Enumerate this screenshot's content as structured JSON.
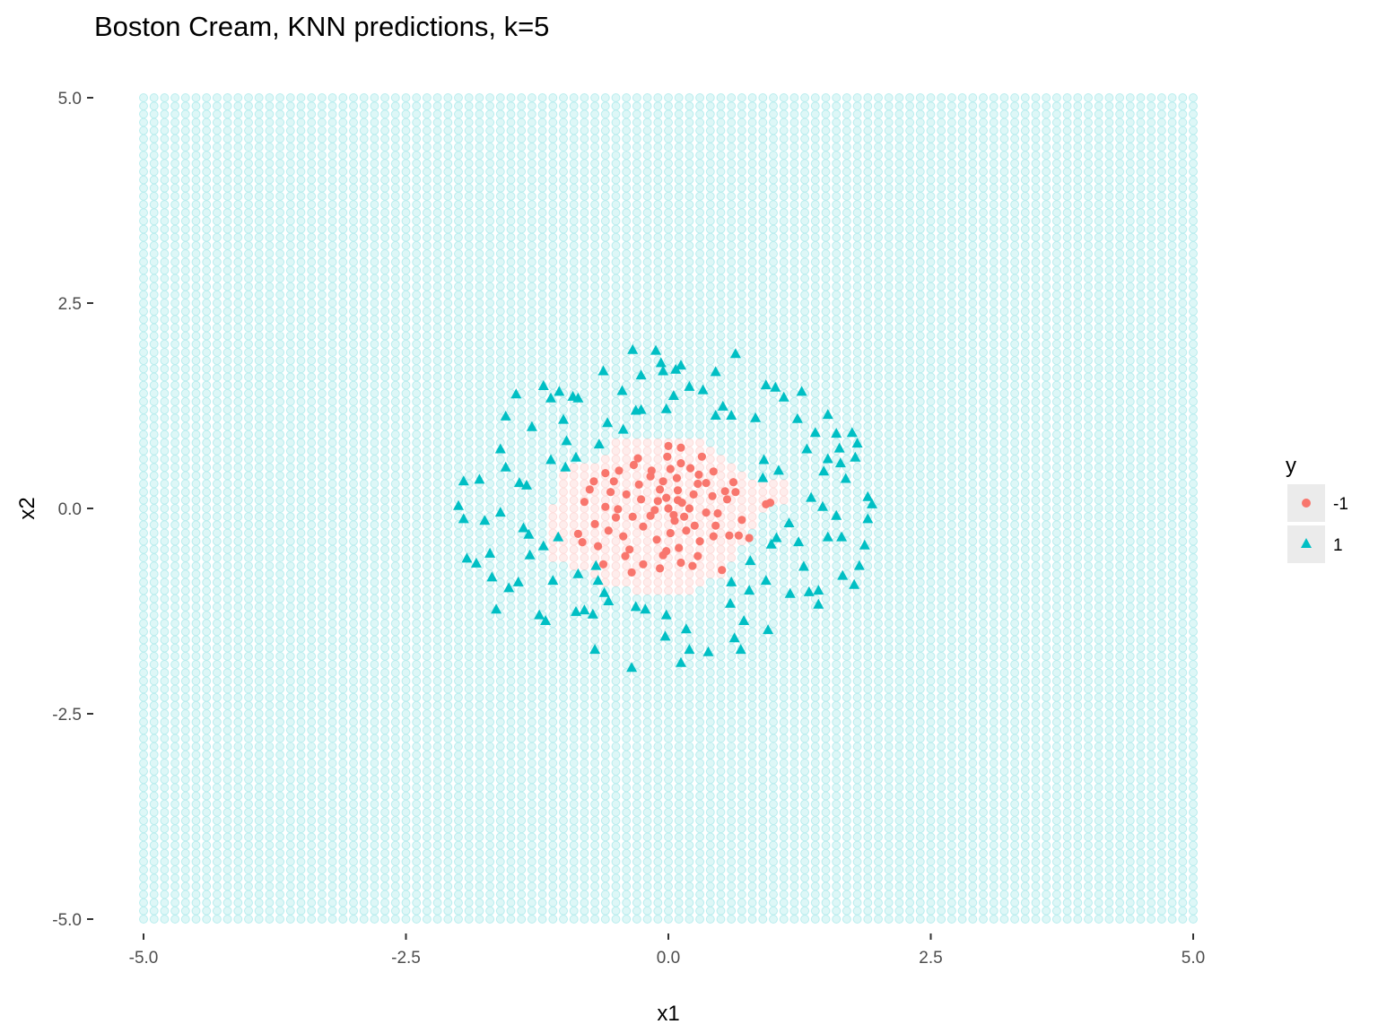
{
  "chart_data": {
    "type": "scatter",
    "title": "Boston Cream, KNN predictions, k=5",
    "xlabel": "x1",
    "ylabel": "x2",
    "xlim": [
      -5,
      5
    ],
    "ylim": [
      -5,
      5
    ],
    "x_ticks": [
      -5.0,
      -2.5,
      0.0,
      2.5,
      5.0
    ],
    "y_ticks": [
      -5.0,
      -2.5,
      0.0,
      2.5,
      5.0
    ],
    "x_tick_labels": [
      "-5.0",
      "-2.5",
      "0.0",
      "2.5",
      "5.0"
    ],
    "y_tick_labels": [
      "-5.0",
      "-2.5",
      "0.0",
      "2.5",
      "5.0"
    ],
    "grid": false,
    "legend": {
      "title": "y",
      "position": "right",
      "entries": [
        {
          "label": "-1",
          "shape": "circle",
          "color": "#F8766D"
        },
        {
          "label": "1",
          "shape": "triangle",
          "color": "#00BFC4"
        }
      ]
    },
    "prediction_grid": {
      "x_range": [
        -5,
        5
      ],
      "y_range": [
        -5,
        5
      ],
      "step": 0.1,
      "color_class_1": "#00BFC4",
      "color_class_neg1": "#F8766D",
      "alpha": 0.15,
      "neg1_region_rows": [
        {
          "y": 0.8,
          "x_from": -0.5,
          "x_to": 0.3
        },
        {
          "y": 0.7,
          "x_from": -0.5,
          "x_to": 0.4
        },
        {
          "y": 0.6,
          "x_from": -0.6,
          "x_to": 0.5
        },
        {
          "y": 0.5,
          "x_from": -0.9,
          "x_to": 0.6
        },
        {
          "y": 0.4,
          "x_from": -1.0,
          "x_to": 0.7
        },
        {
          "y": 0.3,
          "x_from": -1.0,
          "x_to": 1.1
        },
        {
          "y": 0.2,
          "x_from": -1.0,
          "x_to": 1.1
        },
        {
          "y": 0.1,
          "x_from": -1.0,
          "x_to": 1.1
        },
        {
          "y": 0.0,
          "x_from": -1.1,
          "x_to": 0.9
        },
        {
          "y": -0.1,
          "x_from": -1.1,
          "x_to": 0.8
        },
        {
          "y": -0.2,
          "x_from": -1.1,
          "x_to": 0.8
        },
        {
          "y": -0.3,
          "x_from": -1.1,
          "x_to": 0.7
        },
        {
          "y": -0.4,
          "x_from": -1.1,
          "x_to": 0.7
        },
        {
          "y": -0.5,
          "x_from": -1.1,
          "x_to": 0.6
        },
        {
          "y": -0.6,
          "x_from": -1.1,
          "x_to": 0.6
        },
        {
          "y": -0.7,
          "x_from": -0.9,
          "x_to": 0.5
        },
        {
          "y": -0.8,
          "x_from": -0.7,
          "x_to": 0.5
        },
        {
          "y": -0.9,
          "x_from": -0.6,
          "x_to": 0.3
        },
        {
          "y": -1.0,
          "x_from": -0.3,
          "x_to": 0.2
        }
      ]
    },
    "series": [
      {
        "name": "-1",
        "shape": "circle",
        "color": "#F8766D",
        "points": [
          [
            0.0,
            0.76
          ],
          [
            -0.33,
            0.53
          ],
          [
            -0.01,
            0.63
          ],
          [
            0.08,
            0.37
          ],
          [
            -0.17,
            0.39
          ],
          [
            0.12,
            0.55
          ],
          [
            0.29,
            0.41
          ],
          [
            0.42,
            0.15
          ],
          [
            0.56,
            0.11
          ],
          [
            0.36,
            0.31
          ],
          [
            -0.6,
            0.43
          ],
          [
            -0.52,
            0.33
          ],
          [
            -0.75,
            0.23
          ],
          [
            -0.8,
            0.08
          ],
          [
            -0.6,
            0.02
          ],
          [
            -0.5,
            -0.11
          ],
          [
            -0.7,
            -0.19
          ],
          [
            -0.86,
            -0.31
          ],
          [
            -0.43,
            -0.34
          ],
          [
            -0.37,
            -0.5
          ],
          [
            -0.24,
            -0.68
          ],
          [
            -0.05,
            -0.57
          ],
          [
            0.1,
            -0.48
          ],
          [
            0.28,
            -0.58
          ],
          [
            0.43,
            -0.34
          ],
          [
            0.58,
            -0.33
          ],
          [
            0.67,
            -0.33
          ],
          [
            0.77,
            -0.36
          ],
          [
            0.93,
            0.05
          ],
          [
            0.97,
            0.07
          ],
          [
            0.0,
            0.0
          ],
          [
            -0.1,
            0.09
          ],
          [
            0.13,
            0.07
          ],
          [
            0.05,
            -0.08
          ],
          [
            -0.17,
            -0.09
          ],
          [
            0.2,
            0.0
          ],
          [
            -0.26,
            0.11
          ],
          [
            -0.08,
            0.23
          ],
          [
            0.09,
            0.22
          ],
          [
            0.24,
            0.17
          ],
          [
            -0.24,
            -0.22
          ],
          [
            0.25,
            -0.21
          ],
          [
            0.02,
            -0.3
          ],
          [
            -0.05,
            0.33
          ],
          [
            -0.4,
            0.17
          ],
          [
            0.47,
            -0.06
          ],
          [
            -0.11,
            -0.38
          ],
          [
            0.17,
            -0.27
          ],
          [
            0.36,
            -0.05
          ],
          [
            -0.34,
            -0.1
          ],
          [
            0.28,
            0.3
          ],
          [
            -0.28,
            0.29
          ],
          [
            0.54,
            0.21
          ],
          [
            -0.48,
            -0.01
          ],
          [
            0.02,
            0.48
          ],
          [
            -0.16,
            0.46
          ],
          [
            0.21,
            0.49
          ],
          [
            -0.02,
            -0.52
          ],
          [
            -0.57,
            -0.27
          ],
          [
            0.3,
            -0.4
          ],
          [
            -0.67,
            -0.46
          ],
          [
            -0.41,
            -0.58
          ],
          [
            0.12,
            -0.66
          ],
          [
            0.45,
            -0.21
          ],
          [
            0.62,
            0.32
          ],
          [
            -0.82,
            -0.41
          ],
          [
            0.7,
            -0.14
          ],
          [
            -0.29,
            0.61
          ],
          [
            0.32,
            0.63
          ],
          [
            -0.08,
            -0.73
          ],
          [
            0.23,
            -0.7
          ],
          [
            0.51,
            -0.75
          ],
          [
            -0.62,
            -0.68
          ],
          [
            -0.35,
            -0.78
          ],
          [
            0.64,
            0.2
          ],
          [
            -0.71,
            0.33
          ],
          [
            -0.55,
            0.2
          ],
          [
            0.12,
            0.74
          ],
          [
            -0.47,
            0.46
          ],
          [
            0.43,
            0.45
          ],
          [
            0.06,
            -0.15
          ],
          [
            -0.02,
            0.13
          ],
          [
            -0.13,
            -0.02
          ],
          [
            0.15,
            -0.1
          ],
          [
            0.09,
            0.1
          ]
        ]
      },
      {
        "name": "1",
        "shape": "triangle",
        "color": "#00BFC4",
        "points": [
          [
            -0.34,
            1.93
          ],
          [
            -0.12,
            1.92
          ],
          [
            0.64,
            1.88
          ],
          [
            0.12,
            1.74
          ],
          [
            0.07,
            1.69
          ],
          [
            -0.05,
            1.67
          ],
          [
            0.45,
            1.66
          ],
          [
            -0.62,
            1.67
          ],
          [
            0.93,
            1.5
          ],
          [
            0.2,
            1.48
          ],
          [
            -1.19,
            1.49
          ],
          [
            -1.04,
            1.42
          ],
          [
            -0.91,
            1.36
          ],
          [
            -0.86,
            1.34
          ],
          [
            -1.12,
            1.34
          ],
          [
            -1.45,
            1.39
          ],
          [
            -0.44,
            1.43
          ],
          [
            0.05,
            1.37
          ],
          [
            0.33,
            1.44
          ],
          [
            1.1,
            1.35
          ],
          [
            1.27,
            1.42
          ],
          [
            1.02,
            1.47
          ],
          [
            -0.02,
            1.21
          ],
          [
            -0.26,
            1.2
          ],
          [
            -0.31,
            1.19
          ],
          [
            0.52,
            1.24
          ],
          [
            0.6,
            1.13
          ],
          [
            0.45,
            1.13
          ],
          [
            0.83,
            1.1
          ],
          [
            1.23,
            1.09
          ],
          [
            1.52,
            1.14
          ],
          [
            -1.55,
            1.12
          ],
          [
            -1.0,
            1.08
          ],
          [
            -1.3,
            0.99
          ],
          [
            -0.58,
            1.04
          ],
          [
            -0.43,
            0.96
          ],
          [
            -0.97,
            0.82
          ],
          [
            1.6,
            0.91
          ],
          [
            1.75,
            0.92
          ],
          [
            1.8,
            0.79
          ],
          [
            1.63,
            0.73
          ],
          [
            1.52,
            0.6
          ],
          [
            1.64,
            0.55
          ],
          [
            1.4,
            0.92
          ],
          [
            1.32,
            0.72
          ],
          [
            1.05,
            0.46
          ],
          [
            0.91,
            0.59
          ],
          [
            0.9,
            0.37
          ],
          [
            -1.6,
            0.72
          ],
          [
            -1.55,
            0.5
          ],
          [
            -1.12,
            0.59
          ],
          [
            -0.98,
            0.5
          ],
          [
            -0.88,
            0.62
          ],
          [
            -1.42,
            0.31
          ],
          [
            -1.35,
            0.28
          ],
          [
            -1.8,
            0.35
          ],
          [
            -1.95,
            0.33
          ],
          [
            -2.0,
            0.03
          ],
          [
            -1.95,
            -0.13
          ],
          [
            -1.6,
            -0.05
          ],
          [
            -1.75,
            -0.15
          ],
          [
            -1.38,
            -0.24
          ],
          [
            -1.33,
            -0.32
          ],
          [
            -1.19,
            -0.46
          ],
          [
            -1.05,
            -0.35
          ],
          [
            -1.7,
            -0.55
          ],
          [
            -1.83,
            -0.67
          ],
          [
            -1.92,
            -0.61
          ],
          [
            -1.43,
            -0.9
          ],
          [
            -1.52,
            -0.97
          ],
          [
            -1.68,
            -0.84
          ],
          [
            -1.1,
            -0.88
          ],
          [
            -0.67,
            -0.88
          ],
          [
            -0.86,
            -0.8
          ],
          [
            -0.69,
            -0.7
          ],
          [
            -0.61,
            -1.03
          ],
          [
            -0.57,
            -1.13
          ],
          [
            -0.8,
            -1.24
          ],
          [
            -0.72,
            -1.29
          ],
          [
            -1.23,
            -1.3
          ],
          [
            -1.64,
            -1.23
          ],
          [
            -1.17,
            -1.37
          ],
          [
            -0.88,
            -1.26
          ],
          [
            -0.31,
            -1.2
          ],
          [
            -0.22,
            -1.23
          ],
          [
            -0.02,
            -1.3
          ],
          [
            -0.03,
            -1.56
          ],
          [
            0.17,
            -1.47
          ],
          [
            0.2,
            -1.72
          ],
          [
            0.12,
            -1.88
          ],
          [
            0.38,
            -1.75
          ],
          [
            0.69,
            -1.72
          ],
          [
            0.63,
            -1.58
          ],
          [
            0.95,
            -1.48
          ],
          [
            0.72,
            -1.37
          ],
          [
            -0.7,
            -1.72
          ],
          [
            -0.35,
            -1.94
          ],
          [
            0.59,
            -1.16
          ],
          [
            0.77,
            -1.0
          ],
          [
            0.93,
            -0.88
          ],
          [
            0.6,
            -0.9
          ],
          [
            0.78,
            -0.64
          ],
          [
            0.98,
            -0.44
          ],
          [
            1.24,
            -0.41
          ],
          [
            1.29,
            -0.71
          ],
          [
            1.43,
            -1.0
          ],
          [
            1.43,
            -1.17
          ],
          [
            1.66,
            -0.82
          ],
          [
            1.82,
            -0.7
          ],
          [
            1.87,
            -0.45
          ],
          [
            1.9,
            0.14
          ],
          [
            1.9,
            -0.13
          ],
          [
            1.52,
            -0.35
          ],
          [
            1.65,
            -0.35
          ],
          [
            1.6,
            -0.09
          ],
          [
            1.47,
            0.02
          ],
          [
            1.36,
            0.13
          ],
          [
            1.15,
            -0.18
          ],
          [
            1.03,
            -0.36
          ],
          [
            -0.66,
            0.78
          ],
          [
            -0.26,
            1.62
          ],
          [
            -0.07,
            1.77
          ],
          [
            1.34,
            -1.02
          ],
          [
            1.16,
            -1.04
          ],
          [
            -1.32,
            -0.57
          ],
          [
            1.77,
            -0.93
          ],
          [
            1.94,
            0.05
          ],
          [
            1.69,
            0.36
          ],
          [
            1.48,
            0.45
          ],
          [
            1.78,
            0.62
          ]
        ]
      }
    ]
  }
}
